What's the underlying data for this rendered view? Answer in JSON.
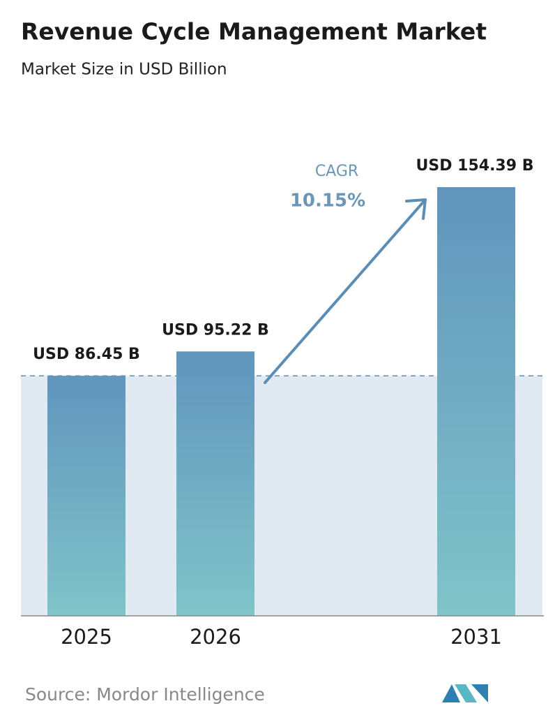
{
  "chart_data": {
    "type": "bar",
    "title": "Revenue Cycle Management Market",
    "subtitle": "Market Size in USD Billion",
    "categories": [
      "2025",
      "2026",
      "2031"
    ],
    "values": [
      86.45,
      95.22,
      154.39
    ],
    "value_labels": [
      "USD 86.45 B",
      "USD 95.22 B",
      "USD 154.39 B"
    ],
    "annotation": {
      "label": "CAGR",
      "value": "10.15%"
    },
    "source": "Source: Mordor Intelligence"
  }
}
